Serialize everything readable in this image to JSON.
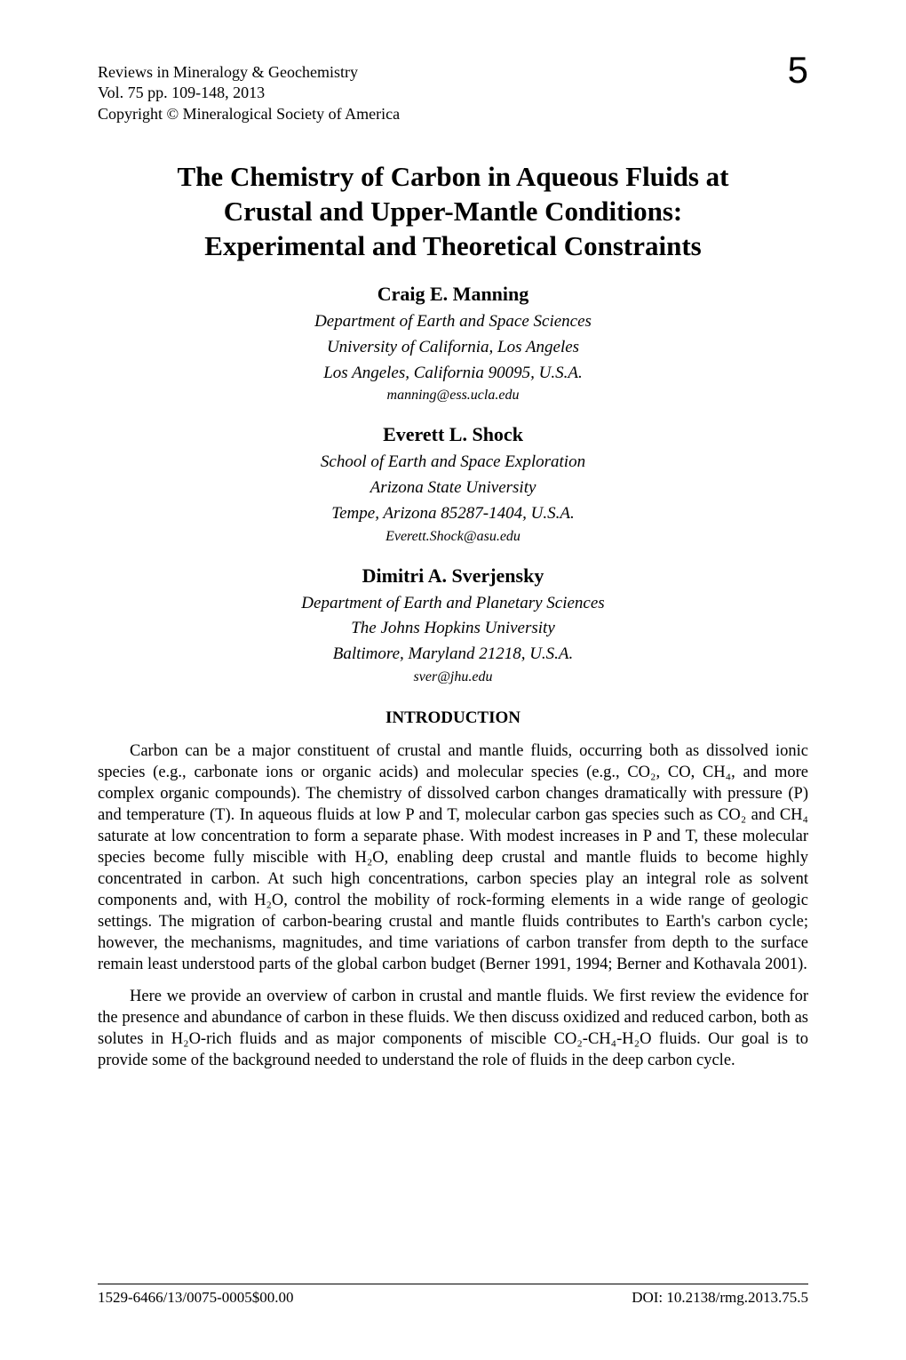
{
  "header": {
    "journal": "Reviews in Mineralogy & Geochemistry",
    "volume": "Vol. 75 pp. 109-148, 2013",
    "copyright": "Copyright © Mineralogical Society of America"
  },
  "chapter_number": "5",
  "title_line1": "The Chemistry of Carbon in Aqueous Fluids at",
  "title_line2": "Crustal and Upper-Mantle Conditions:",
  "title_line3": "Experimental and Theoretical Constraints",
  "authors": [
    {
      "name": "Craig E. Manning",
      "affiliation_line1": "Department of Earth and Space Sciences",
      "affiliation_line2": "University of California, Los Angeles",
      "affiliation_line3": "Los Angeles, California 90095, U.S.A.",
      "email": "manning@ess.ucla.edu"
    },
    {
      "name": "Everett L. Shock",
      "affiliation_line1": "School of Earth and Space Exploration",
      "affiliation_line2": "Arizona State University",
      "affiliation_line3": "Tempe, Arizona 85287-1404, U.S.A.",
      "email": "Everett.Shock@asu.edu"
    },
    {
      "name": "Dimitri A. Sverjensky",
      "affiliation_line1": "Department of Earth and Planetary Sciences",
      "affiliation_line2": "The Johns Hopkins University",
      "affiliation_line3": "Baltimore, Maryland 21218, U.S.A.",
      "email": "sver@jhu.edu"
    }
  ],
  "section_heading": "INTRODUCTION",
  "paragraph1": "Carbon can be a major constituent of crustal and mantle fluids, occurring both as dissolved ionic species (e.g., carbonate ions or organic acids) and molecular species (e.g., CO₂, CO, CH₄, and more complex organic compounds). The chemistry of dissolved carbon changes dramatically with pressure (P) and temperature (T). In aqueous fluids at low P and T, molecular carbon gas species such as CO₂ and CH₄ saturate at low concentration to form a separate phase. With modest increases in P and T, these molecular species become fully miscible with H₂O, enabling deep crustal and mantle fluids to become highly concentrated in carbon. At such high concentrations, carbon species play an integral role as solvent components and, with H₂O, control the mobility of rock-forming elements in a wide range of geologic settings. The migration of carbon-bearing crustal and mantle fluids contributes to Earth's carbon cycle; however, the mechanisms, magnitudes, and time variations of carbon transfer from depth to the surface remain least understood parts of the global carbon budget (Berner 1991, 1994; Berner and Kothavala 2001).",
  "paragraph2": "Here we provide an overview of carbon in crustal and mantle fluids. We first review the evidence for the presence and abundance of carbon in these fluids. We then discuss oxidized and reduced carbon, both as solutes in H₂O-rich fluids and as major components of miscible CO₂-CH₄-H₂O fluids. Our goal is to provide some of the background needed to understand the role of fluids in the deep carbon cycle.",
  "footer": {
    "left": "1529-6466/13/0075-0005$00.00",
    "right": "DOI: 10.2138/rmg.2013.75.5"
  }
}
